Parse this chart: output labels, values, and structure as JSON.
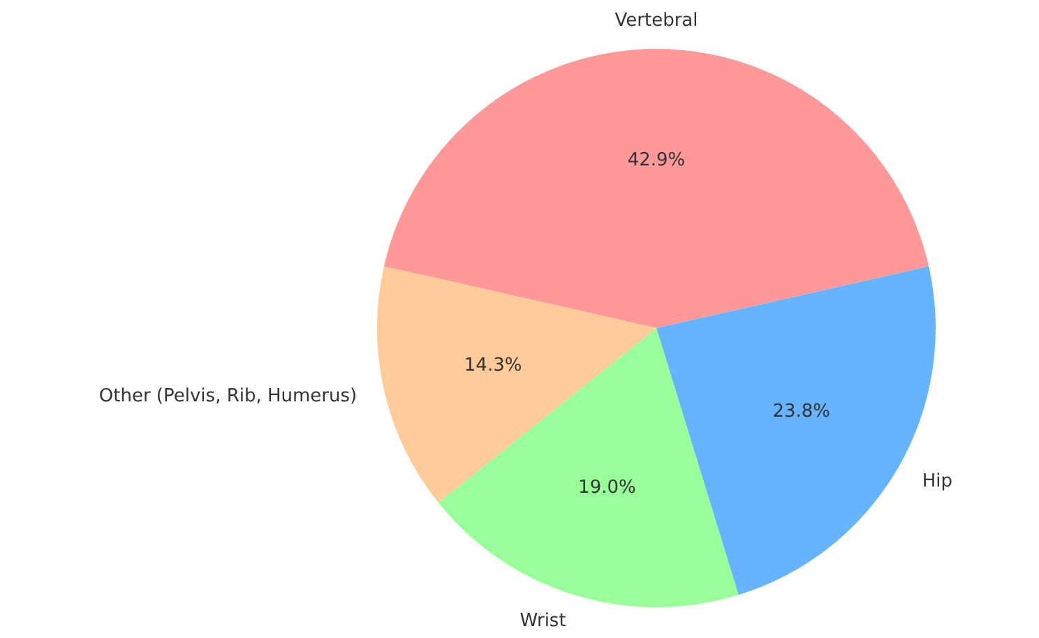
{
  "chart_data": {
    "type": "pie",
    "categories": [
      "Vertebral",
      "Hip",
      "Wrist",
      "Other (Pelvis, Rib, Humerus)"
    ],
    "values": [
      42.9,
      23.8,
      19.0,
      14.3
    ],
    "colors": [
      "#ff9999",
      "#66b3ff",
      "#99ff99",
      "#ffcc99"
    ],
    "value_labels": [
      "42.9%",
      "23.8%",
      "19.0%",
      "14.3%"
    ],
    "legend": false
  }
}
